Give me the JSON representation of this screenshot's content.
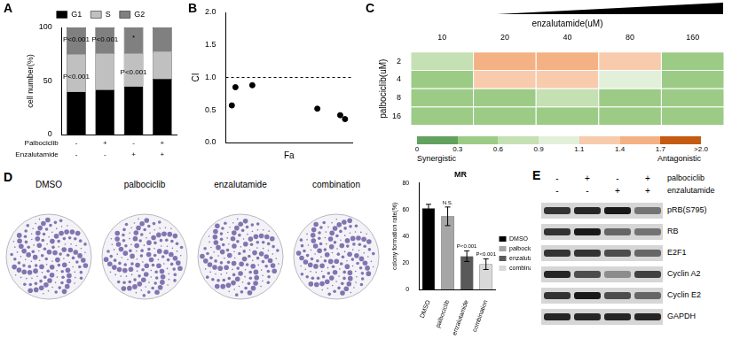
{
  "chart_data": [
    {
      "title": "A",
      "type": "bar",
      "stacked": true,
      "grid": false,
      "legend": "top",
      "categories": [
        null,
        null,
        null,
        null
      ],
      "series": [
        {
          "name": "G1",
          "color": "#000000",
          "values": [
            40,
            42,
            45,
            52
          ]
        },
        {
          "name": "S",
          "color": "#c0c0c0",
          "values": [
            35,
            34,
            31,
            25
          ]
        },
        {
          "name": "G2",
          "color": "#808080",
          "values": [
            25,
            24,
            24,
            23
          ]
        }
      ],
      "condition_rows": [
        {
          "label": "Palbociclib",
          "marks": [
            "-",
            "+",
            "-",
            "+"
          ]
        },
        {
          "label": "Enzalutamide",
          "marks": [
            "-",
            "-",
            "+",
            "+"
          ]
        }
      ],
      "y_label": "cell number(%)",
      "ylim": [
        0,
        100
      ],
      "yticks": [
        0,
        50,
        100
      ],
      "annotations": [
        {
          "x": 0,
          "y": 89,
          "text": "P<0.001"
        },
        {
          "x": 0,
          "y": 54,
          "text": "P<0.001"
        },
        {
          "x": 1,
          "y": 89,
          "text": "P<0.001"
        },
        {
          "x": 2,
          "y": 90,
          "text": "*"
        },
        {
          "x": 2,
          "y": 58,
          "text": "P<0.001"
        }
      ]
    },
    {
      "title": "B",
      "type": "scatter",
      "grid": false,
      "marker": "circle",
      "color": "#000000",
      "x": [
        0.05,
        0.08,
        0.22,
        0.76,
        0.95,
        0.99
      ],
      "values": [
        0.57,
        0.85,
        0.88,
        0.52,
        0.42,
        0.36
      ],
      "x_label": "Fa",
      "y_label": "CI",
      "xlim": [
        0,
        1.05
      ],
      "ylim": [
        0,
        2
      ],
      "yticks": [
        {
          "value": 0,
          "label": "0.0"
        },
        {
          "value": 0.5,
          "label": "0.5"
        },
        {
          "value": 1,
          "label": "1.0"
        },
        {
          "value": 1.5,
          "label": "1.5"
        },
        {
          "value": 2,
          "label": "2.0"
        }
      ],
      "tick_labels": "y",
      "reference_line": {
        "y": 1,
        "line_style": "dashed"
      }
    },
    {
      "title": "C",
      "type": "heatmap",
      "x_label": "enzalutamide(uM)",
      "y_label": "palbociclib(uM)",
      "categories": [
        10,
        20,
        40,
        80,
        160
      ],
      "rows": [
        2,
        4,
        8,
        16
      ],
      "cells": [
        [
          0.7,
          1.5,
          1.5,
          1.2,
          0.5
        ],
        [
          0.5,
          1.2,
          1.2,
          1.0,
          0.5
        ],
        [
          0.5,
          0.5,
          0.6,
          0.5,
          0.5
        ],
        [
          0.4,
          0.5,
          0.5,
          0.5,
          0.4
        ]
      ],
      "colorbar": {
        "ticks": [
          0,
          0.3,
          0.6,
          0.9,
          1.1,
          1.4,
          1.7,
          {
            "value": 2,
            "label": ">2.0"
          }
        ],
        "colors": [
          "#63a15f",
          "#9ccb86",
          "#c5e0b3",
          "#e2efd9",
          "#f8cbad",
          "#f4b183",
          "#c55a11"
        ],
        "low_label": "Synergistic",
        "high_label": "Antagonistic"
      }
    },
    {
      "title": "MR",
      "type": "bar",
      "grid": false,
      "legend": "right",
      "categories": [
        "DMSO",
        "palbociclib",
        "enzalutamide",
        "combination"
      ],
      "values": [
        61,
        55,
        25,
        19
      ],
      "errors": [
        3,
        7,
        4,
        4
      ],
      "colors": [
        "#000000",
        "#a6a6a6",
        "#595959",
        "#d9d9d9"
      ],
      "y_label": "colony formation rate(%)",
      "ylim": [
        0,
        80
      ],
      "yticks": [
        0,
        20,
        40,
        60,
        80
      ],
      "annotations": [
        {
          "x": 1,
          "text": "N.S."
        },
        {
          "x": 2,
          "text": "P<0.001"
        },
        {
          "x": 3,
          "text": "P<0.001"
        }
      ]
    }
  ],
  "panel_D_images": {
    "title": "D",
    "labels": [
      "DMSO",
      "palbociclib",
      "enzalutamide",
      "combination"
    ]
  },
  "panel_E_blot": {
    "title": "E",
    "conditions": [
      {
        "label": "palbociclib",
        "marks": [
          "-",
          "+",
          "-",
          "+"
        ]
      },
      {
        "label": "enzalutamide",
        "marks": [
          "-",
          "-",
          "+",
          "+"
        ]
      }
    ],
    "bands": [
      {
        "label": "pRB(S795)",
        "intensity": [
          0.8,
          0.85,
          0.9,
          0.55
        ]
      },
      {
        "label": "RB",
        "intensity": [
          0.8,
          0.9,
          0.6,
          0.55
        ]
      },
      {
        "label": "E2F1",
        "intensity": [
          0.8,
          0.8,
          0.7,
          0.6
        ]
      },
      {
        "label": "Cyclin A2",
        "intensity": [
          0.85,
          0.7,
          0.45,
          0.75
        ]
      },
      {
        "label": "Cyclin E2",
        "intensity": [
          0.8,
          0.9,
          0.7,
          0.6
        ]
      },
      {
        "label": "GAPDH",
        "intensity": [
          0.85,
          0.85,
          0.85,
          0.85
        ]
      }
    ]
  }
}
